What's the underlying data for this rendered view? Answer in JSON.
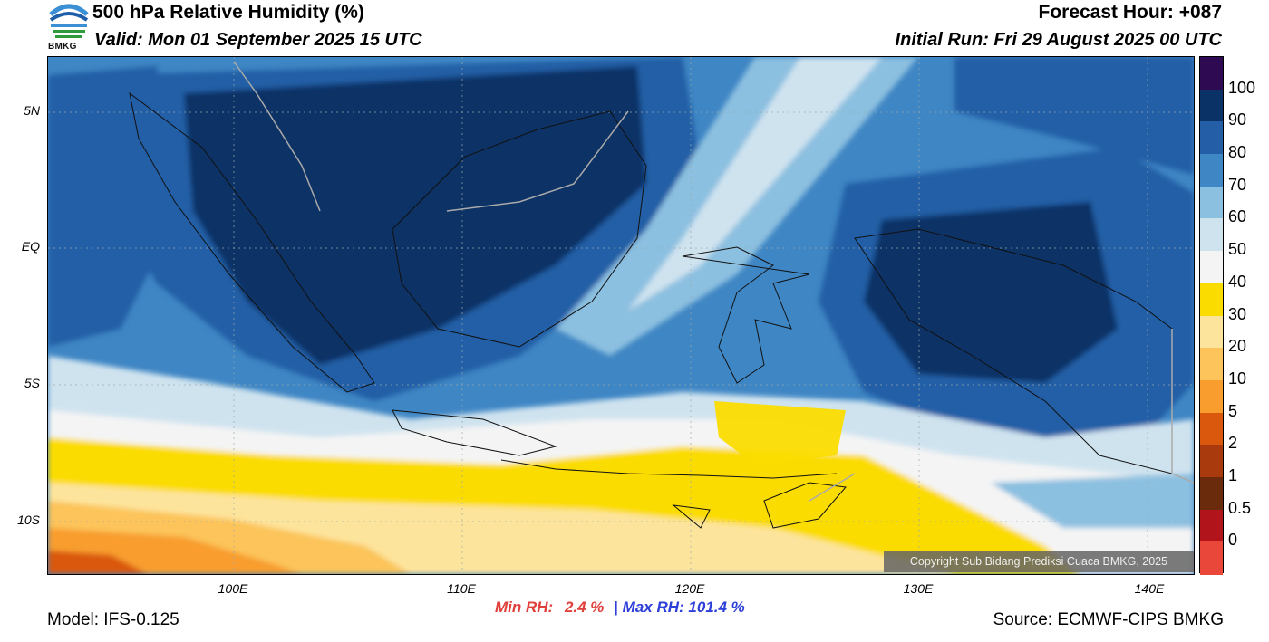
{
  "header": {
    "title": "500 hPa Relative Humidity (%)",
    "valid": "Valid: Mon 01 September 2025 15 UTC",
    "forecast_hour": "Forecast Hour: +087",
    "initial_run": "Initial Run: Fri 29 August 2025 00 UTC"
  },
  "logo": {
    "text": "BMKG",
    "icon": "bmkg-logo-icon",
    "colors": [
      "#1f5ea8",
      "#3b8fd4",
      "#2f9b3a"
    ]
  },
  "map": {
    "lat_labels": [
      "5N",
      "EQ",
      "5S",
      "10S"
    ],
    "lon_labels": [
      "100E",
      "110E",
      "120E",
      "130E",
      "140E"
    ],
    "copyright": "Copyright Sub Bidang Prediksi Cuaca BMKG, 2025"
  },
  "colorbar": {
    "labels": [
      "100",
      "90",
      "80",
      "70",
      "60",
      "50",
      "40",
      "30",
      "20",
      "10",
      "5",
      "2",
      "1",
      "0.5",
      "0"
    ],
    "colors": [
      "#2d0a52",
      "#0b3266",
      "#235ea6",
      "#3f86c4",
      "#8cc0e0",
      "#cfe3ef",
      "#f4f4f4",
      "#fbdc00",
      "#fde49c",
      "#fcc45a",
      "#f89d2e",
      "#d9580e",
      "#a83a0e",
      "#6a2a0c",
      "#b2141c",
      "#e8473a"
    ]
  },
  "stats": {
    "min_label": "Min RH:",
    "min_value": "2.4 %",
    "separator": "|",
    "max_label": "Max RH:",
    "max_value": "101.4 %"
  },
  "footer": {
    "model": "Model: IFS-0.125",
    "source": "Source: ECMWF-CIPS BMKG"
  }
}
